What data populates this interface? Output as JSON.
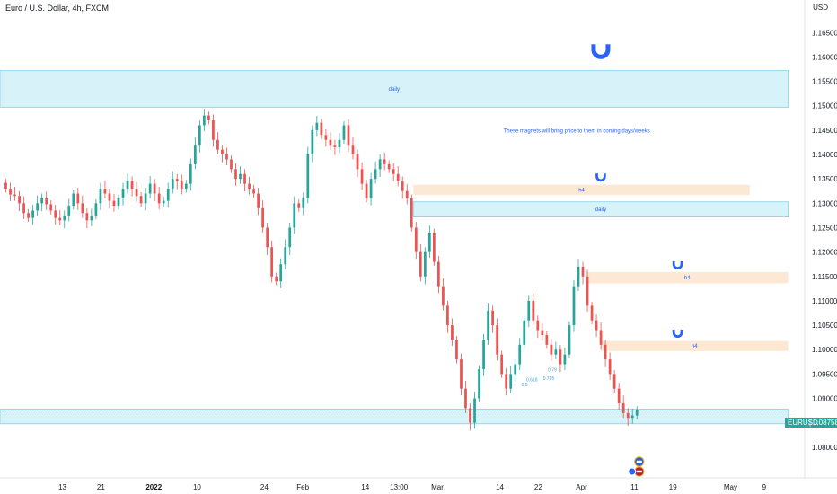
{
  "header": {
    "title": "Euro / U.S. Dollar, 4h, FXCM",
    "currency": "USD"
  },
  "price_tag": {
    "symbol": "EURUSD",
    "value": "1.08758",
    "color": "#26a69a"
  },
  "colors": {
    "up": "#26a69a",
    "down": "#ef5350",
    "daily_fill": "#d7f2f8",
    "daily_stroke": "#7fd3e6",
    "h4_fill": "#fde9d3",
    "magnet": "#2962ff"
  },
  "annotations": {
    "note": "These magnets will bring price to them in coming days/weeks",
    "fib_labels": [
      "0.5",
      "0.618",
      "0.705",
      "0.79"
    ],
    "magnet_icon": "magnet-icon",
    "event_icons": [
      "eu-flag-icon",
      "us-flag-icon"
    ]
  },
  "chart_data": {
    "type": "candlestick",
    "title": "Euro / U.S. Dollar, 4h, FXCM",
    "ylim": [
      1.075,
      1.168
    ],
    "y_ticks": [
      {
        "value": 1.165,
        "label": "1.16500"
      },
      {
        "value": 1.16,
        "label": "1.16000"
      },
      {
        "value": 1.155,
        "label": "1.15500"
      },
      {
        "value": 1.15,
        "label": "1.15000"
      },
      {
        "value": 1.145,
        "label": "1.14500"
      },
      {
        "value": 1.14,
        "label": "1.14000"
      },
      {
        "value": 1.135,
        "label": "1.13500"
      },
      {
        "value": 1.13,
        "label": "1.13000"
      },
      {
        "value": 1.125,
        "label": "1.12500"
      },
      {
        "value": 1.12,
        "label": "1.12000"
      },
      {
        "value": 1.115,
        "label": "1.11500"
      },
      {
        "value": 1.11,
        "label": "1.11000"
      },
      {
        "value": 1.105,
        "label": "1.10500"
      },
      {
        "value": 1.1,
        "label": "1.10000"
      },
      {
        "value": 1.095,
        "label": "1.09500"
      },
      {
        "value": 1.09,
        "label": "1.09000"
      },
      {
        "value": 1.085,
        "label": "1.08500"
      },
      {
        "value": 1.08,
        "label": "1.08000"
      }
    ],
    "x_ticks": [
      {
        "t": 13,
        "label": "13",
        "bold": false
      },
      {
        "t": 21,
        "label": "21",
        "bold": false
      },
      {
        "t": 32,
        "label": "2022",
        "bold": true
      },
      {
        "t": 41,
        "label": "10",
        "bold": false
      },
      {
        "t": 55,
        "label": "24",
        "bold": false
      },
      {
        "t": 63,
        "label": "Feb",
        "bold": false
      },
      {
        "t": 76,
        "label": "14",
        "bold": false
      },
      {
        "t": 83,
        "label": "13:00",
        "bold": false
      },
      {
        "t": 91,
        "label": "Mar",
        "bold": false
      },
      {
        "t": 104,
        "label": "14",
        "bold": false
      },
      {
        "t": 112,
        "label": "22",
        "bold": false
      },
      {
        "t": 121,
        "label": "Apr",
        "bold": false
      },
      {
        "t": 132,
        "label": "11",
        "bold": false
      },
      {
        "t": 140,
        "label": "19",
        "bold": false
      },
      {
        "t": 152,
        "label": "May",
        "bold": false
      },
      {
        "t": 159,
        "label": "9",
        "bold": false
      }
    ],
    "x_range": [
      0,
      165
    ],
    "zones": [
      {
        "kind": "daily",
        "label": "daily",
        "t0": 0,
        "t1": 164,
        "y_top": 1.1572,
        "y_bot": 1.1497
      },
      {
        "kind": "h4",
        "label": "h4",
        "t0": 86,
        "t1": 156,
        "y_top": 1.1338,
        "y_bot": 1.1317
      },
      {
        "kind": "daily",
        "label": "daily",
        "t0": 86,
        "t1": 164,
        "y_top": 1.1303,
        "y_bot": 1.1272
      },
      {
        "kind": "h4",
        "label": "h4",
        "t0": 122,
        "t1": 164,
        "y_top": 1.1159,
        "y_bot": 1.1136
      },
      {
        "kind": "h4",
        "label": "h4",
        "t0": 125,
        "t1": 164,
        "y_top": 1.1018,
        "y_bot": 1.0997
      },
      {
        "kind": "daily",
        "label": "",
        "t0": 0,
        "t1": 164,
        "y_top": 1.0878,
        "y_bot": 1.0848
      }
    ],
    "magnets": [
      {
        "t": 125,
        "y": 1.1615,
        "size": "large"
      },
      {
        "t": 125,
        "y": 1.1355,
        "size": "small"
      },
      {
        "t": 141,
        "y": 1.1175,
        "size": "small"
      },
      {
        "t": 141,
        "y": 1.1035,
        "size": "small"
      }
    ],
    "closes": [
      1.133,
      1.1318,
      1.1315,
      1.13,
      1.128,
      1.127,
      1.1285,
      1.13,
      1.131,
      1.1298,
      1.1285,
      1.127,
      1.1265,
      1.1275,
      1.1295,
      1.132,
      1.13,
      1.128,
      1.1265,
      1.1275,
      1.13,
      1.133,
      1.132,
      1.1305,
      1.1295,
      1.131,
      1.133,
      1.1345,
      1.133,
      1.1315,
      1.13,
      1.132,
      1.134,
      1.132,
      1.13,
      1.1305,
      1.133,
      1.135,
      1.1345,
      1.133,
      1.134,
      1.138,
      1.142,
      1.146,
      1.148,
      1.147,
      1.143,
      1.141,
      1.14,
      1.139,
      1.137,
      1.135,
      1.136,
      1.134,
      1.133,
      1.132,
      1.129,
      1.125,
      1.121,
      1.115,
      1.114,
      1.1175,
      1.121,
      1.125,
      1.13,
      1.129,
      1.131,
      1.14,
      1.145,
      1.1465,
      1.144,
      1.143,
      1.142,
      1.1415,
      1.143,
      1.146,
      1.142,
      1.14,
      1.137,
      1.134,
      1.131,
      1.135,
      1.137,
      1.139,
      1.138,
      1.137,
      1.136,
      1.1345,
      1.1325,
      1.131,
      1.125,
      1.12,
      1.115,
      1.12,
      1.124,
      1.118,
      1.113,
      1.109,
      1.105,
      1.102,
      1.098,
      1.092,
      1.088,
      1.085,
      1.09,
      1.096,
      1.102,
      1.108,
      1.105,
      1.099,
      1.095,
      1.092,
      1.095,
      1.097,
      1.101,
      1.106,
      1.11,
      1.106,
      1.104,
      1.103,
      1.101,
      1.099,
      1.1,
      1.097,
      1.099,
      1.105,
      1.113,
      1.117,
      1.115,
      1.109,
      1.106,
      1.104,
      1.101,
      1.098,
      1.095,
      1.092,
      1.089,
      1.087,
      1.086,
      1.0865,
      1.0876
    ]
  }
}
